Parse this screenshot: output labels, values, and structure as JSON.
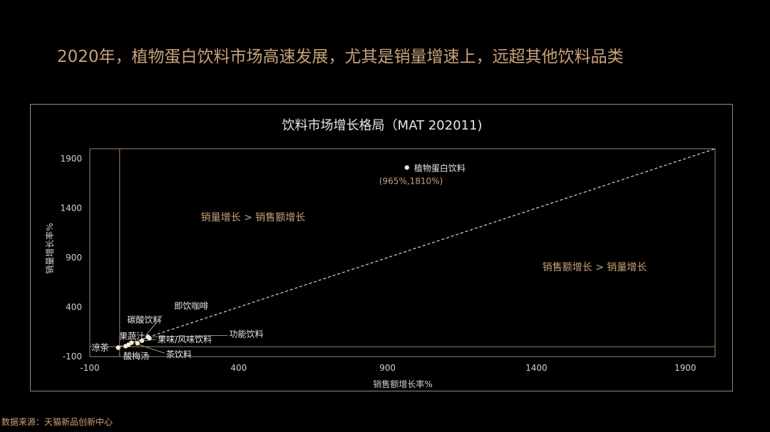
{
  "page": {
    "headline": "2020年，植物蛋白饮料市场高速发展，尤其是销量增速上，远超其他饮料品类",
    "source": "数据来源：天猫新品创新中心"
  },
  "colors": {
    "accent": "#c9a27a",
    "axis_text": "#d0d0d0",
    "point": "#f3ecd2",
    "frame": "#8a8a8a"
  },
  "chart_data": {
    "type": "scatter",
    "title": "饮料市场增长格局（MAT 202011)",
    "xlabel": "销售额增长率%",
    "ylabel": "销量增长率%",
    "xlim": [
      -100,
      2000
    ],
    "ylim": [
      -100,
      2000
    ],
    "xticks": [
      -100,
      400,
      900,
      1400,
      1900
    ],
    "yticks": [
      -100,
      400,
      900,
      1400,
      1900
    ],
    "grid": false,
    "reference_line": "y = x",
    "quadrant_labels": {
      "upper": "销量增长 > 销售额增长",
      "lower": "销售额增长 > 销量增长"
    },
    "points": [
      {
        "name": "植物蛋白饮料",
        "x": 965,
        "y": 1810,
        "value_label": "(965%,1810%)"
      },
      {
        "name": "即饮咖啡",
        "x": 95,
        "y": 100
      },
      {
        "name": "碳酸饮料",
        "x": 40,
        "y": 40
      },
      {
        "name": "果蔬汁",
        "x": 30,
        "y": 20
      },
      {
        "name": "果味/风味饮料",
        "x": 75,
        "y": 60
      },
      {
        "name": "功能饮料",
        "x": 100,
        "y": 85
      },
      {
        "name": "凉茶",
        "x": -5,
        "y": -10
      },
      {
        "name": "酸梅汤",
        "x": 20,
        "y": 5
      },
      {
        "name": "茶饮料",
        "x": 60,
        "y": 35
      }
    ]
  }
}
